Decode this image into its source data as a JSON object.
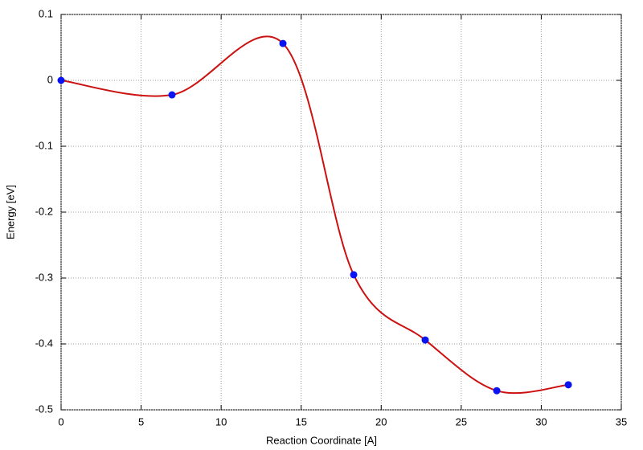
{
  "chart_data": {
    "type": "line",
    "xlabel": "Reaction Coordinate [A]",
    "ylabel": "Energy [eV]",
    "x": [
      0,
      6.93,
      13.86,
      18.28,
      22.75,
      27.22,
      31.69
    ],
    "values": [
      0,
      -0.022,
      0.056,
      -0.295,
      -0.394,
      -0.471,
      -0.462
    ],
    "line_color": "#cc1111",
    "marker_color": "#0a14f0",
    "smooth": true,
    "xlim": [
      0,
      35
    ],
    "xticks": [
      0,
      5,
      10,
      15,
      20,
      25,
      30,
      35
    ],
    "ylim": [
      -0.5,
      0.1
    ],
    "yticks": [
      0.1,
      0,
      -0.1,
      -0.2,
      -0.3,
      -0.4,
      -0.5
    ],
    "grid": true
  }
}
